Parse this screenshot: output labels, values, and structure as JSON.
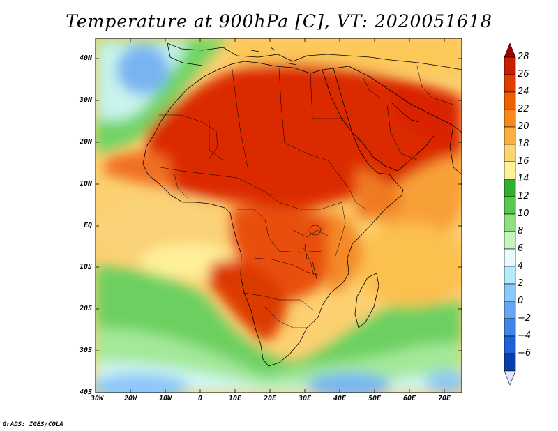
{
  "title": "Temperature at 900hPa [C], VT: 2020051618",
  "credit": "GrADS: IGES/COLA",
  "map": {
    "region": "Africa",
    "lon_range": [
      -30,
      75
    ],
    "lat_range": [
      -40,
      45
    ],
    "lat_labels": [
      "40N",
      "30N",
      "20N",
      "10N",
      "EQ",
      "10S",
      "20S",
      "30S",
      "40S"
    ],
    "lon_labels": [
      "30W",
      "20W",
      "10W",
      "0",
      "10E",
      "20E",
      "30E",
      "40E",
      "50E",
      "60E",
      "70E"
    ]
  },
  "colorbar": {
    "labels": [
      "28",
      "26",
      "24",
      "22",
      "20",
      "18",
      "16",
      "14",
      "12",
      "10",
      "8",
      "6",
      "4",
      "2",
      "0",
      "−2",
      "−4",
      "−6"
    ],
    "colors": [
      "#a00000",
      "#c81e00",
      "#e03c00",
      "#f06000",
      "#f88a1c",
      "#fab040",
      "#fcd470",
      "#fff09a",
      "#30b030",
      "#5ac850",
      "#8ee080",
      "#c8f4c0",
      "#e8fcfc",
      "#b4ecfc",
      "#8cc8fa",
      "#64a6f4",
      "#3e84e8",
      "#2060d8",
      "#0a3caa",
      "#08186a"
    ]
  }
}
